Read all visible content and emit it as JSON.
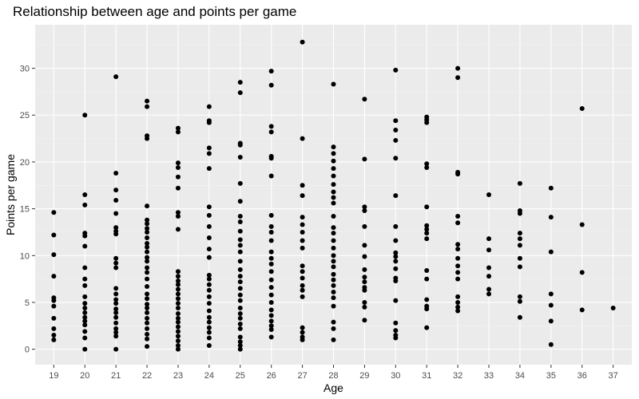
{
  "chart_data": {
    "type": "scatter",
    "title": "Relationship between age and points per game",
    "xlabel": "Age",
    "ylabel": "Points per game",
    "xlim": [
      18.4,
      37.6
    ],
    "ylim": [
      -1.65,
      34.65
    ],
    "x_ticks": [
      19,
      20,
      21,
      22,
      23,
      24,
      25,
      26,
      27,
      28,
      29,
      30,
      31,
      32,
      33,
      34,
      35,
      36,
      37
    ],
    "y_ticks": [
      0,
      5,
      10,
      15,
      20,
      25,
      30
    ],
    "grid": true,
    "legend": "none",
    "colors": {
      "panel_bg": "#EBEBEB",
      "grid_major": "#FFFFFF",
      "grid_minor": "#F2F2F2",
      "point": "#000000",
      "tick": "#333333"
    },
    "series": [
      {
        "points": [
          [
            19,
            14.6
          ],
          [
            19,
            12.2
          ],
          [
            19,
            10.1
          ],
          [
            19,
            7.8
          ],
          [
            19,
            5.5
          ],
          [
            19,
            5.2
          ],
          [
            19,
            4.6
          ],
          [
            19,
            3.3
          ],
          [
            19,
            2.2
          ],
          [
            19,
            1.5
          ],
          [
            19,
            1.0
          ],
          [
            20,
            25.0
          ],
          [
            20,
            16.5
          ],
          [
            20,
            15.4
          ],
          [
            20,
            12.4
          ],
          [
            20,
            12.1
          ],
          [
            20,
            11.0
          ],
          [
            20,
            8.7
          ],
          [
            20,
            7.5
          ],
          [
            20,
            6.8
          ],
          [
            20,
            5.6
          ],
          [
            20,
            4.9
          ],
          [
            20,
            4.4
          ],
          [
            20,
            3.9
          ],
          [
            20,
            3.4
          ],
          [
            20,
            3.0
          ],
          [
            20,
            2.6
          ],
          [
            20,
            1.9
          ],
          [
            20,
            1.2
          ],
          [
            20,
            0.0
          ],
          [
            21,
            29.1
          ],
          [
            21,
            18.8
          ],
          [
            21,
            17.0
          ],
          [
            21,
            15.9
          ],
          [
            21,
            14.5
          ],
          [
            21,
            13.0
          ],
          [
            21,
            12.6
          ],
          [
            21,
            12.3
          ],
          [
            21,
            9.7
          ],
          [
            21,
            9.2
          ],
          [
            21,
            8.7
          ],
          [
            21,
            6.5
          ],
          [
            21,
            5.9
          ],
          [
            21,
            5.3
          ],
          [
            21,
            4.9
          ],
          [
            21,
            4.3
          ],
          [
            21,
            3.9
          ],
          [
            21,
            3.4
          ],
          [
            21,
            2.8
          ],
          [
            21,
            2.2
          ],
          [
            21,
            1.8
          ],
          [
            21,
            1.4
          ],
          [
            21,
            0.0
          ],
          [
            22,
            26.5
          ],
          [
            22,
            25.9
          ],
          [
            22,
            22.8
          ],
          [
            22,
            22.5
          ],
          [
            22,
            15.3
          ],
          [
            22,
            13.8
          ],
          [
            22,
            13.4
          ],
          [
            22,
            12.9
          ],
          [
            22,
            12.5
          ],
          [
            22,
            11.9
          ],
          [
            22,
            11.3
          ],
          [
            22,
            10.9
          ],
          [
            22,
            10.4
          ],
          [
            22,
            9.8
          ],
          [
            22,
            9.4
          ],
          [
            22,
            8.7
          ],
          [
            22,
            8.2
          ],
          [
            22,
            7.5
          ],
          [
            22,
            6.7
          ],
          [
            22,
            5.9
          ],
          [
            22,
            5.4
          ],
          [
            22,
            4.8
          ],
          [
            22,
            4.4
          ],
          [
            22,
            3.9
          ],
          [
            22,
            3.3
          ],
          [
            22,
            2.8
          ],
          [
            22,
            2.2
          ],
          [
            22,
            1.6
          ],
          [
            22,
            1.1
          ],
          [
            22,
            0.3
          ],
          [
            23,
            23.6
          ],
          [
            23,
            23.2
          ],
          [
            23,
            19.9
          ],
          [
            23,
            19.4
          ],
          [
            23,
            18.4
          ],
          [
            23,
            17.2
          ],
          [
            23,
            14.6
          ],
          [
            23,
            14.2
          ],
          [
            23,
            12.8
          ],
          [
            23,
            8.3
          ],
          [
            23,
            7.8
          ],
          [
            23,
            7.3
          ],
          [
            23,
            6.9
          ],
          [
            23,
            6.4
          ],
          [
            23,
            5.9
          ],
          [
            23,
            5.4
          ],
          [
            23,
            4.9
          ],
          [
            23,
            4.4
          ],
          [
            23,
            3.8
          ],
          [
            23,
            3.3
          ],
          [
            23,
            2.9
          ],
          [
            23,
            2.4
          ],
          [
            23,
            1.9
          ],
          [
            23,
            1.4
          ],
          [
            23,
            0.9
          ],
          [
            23,
            0.4
          ],
          [
            23,
            0.0
          ],
          [
            24,
            25.9
          ],
          [
            24,
            24.4
          ],
          [
            24,
            24.2
          ],
          [
            24,
            21.5
          ],
          [
            24,
            20.9
          ],
          [
            24,
            19.3
          ],
          [
            24,
            15.2
          ],
          [
            24,
            14.3
          ],
          [
            24,
            13.1
          ],
          [
            24,
            11.9
          ],
          [
            24,
            10.7
          ],
          [
            24,
            9.8
          ],
          [
            24,
            7.9
          ],
          [
            24,
            7.5
          ],
          [
            24,
            6.9
          ],
          [
            24,
            6.3
          ],
          [
            24,
            5.6
          ],
          [
            24,
            4.9
          ],
          [
            24,
            4.1
          ],
          [
            24,
            3.4
          ],
          [
            24,
            2.9
          ],
          [
            24,
            2.3
          ],
          [
            24,
            1.8
          ],
          [
            24,
            1.2
          ],
          [
            24,
            0.4
          ],
          [
            25,
            28.5
          ],
          [
            25,
            27.4
          ],
          [
            25,
            22.0
          ],
          [
            25,
            21.8
          ],
          [
            25,
            20.5
          ],
          [
            25,
            17.7
          ],
          [
            25,
            15.8
          ],
          [
            25,
            14.2
          ],
          [
            25,
            13.6
          ],
          [
            25,
            12.6
          ],
          [
            25,
            11.7
          ],
          [
            25,
            11.1
          ],
          [
            25,
            10.4
          ],
          [
            25,
            9.4
          ],
          [
            25,
            8.5
          ],
          [
            25,
            7.8
          ],
          [
            25,
            7.2
          ],
          [
            25,
            6.5
          ],
          [
            25,
            5.8
          ],
          [
            25,
            5.2
          ],
          [
            25,
            4.4
          ],
          [
            25,
            3.8
          ],
          [
            25,
            3.3
          ],
          [
            25,
            2.7
          ],
          [
            25,
            2.2
          ],
          [
            25,
            1.3
          ],
          [
            25,
            0.8
          ],
          [
            25,
            0.4
          ],
          [
            25,
            0.0
          ],
          [
            26,
            29.7
          ],
          [
            26,
            28.2
          ],
          [
            26,
            23.8
          ],
          [
            26,
            23.2
          ],
          [
            26,
            20.6
          ],
          [
            26,
            20.4
          ],
          [
            26,
            18.5
          ],
          [
            26,
            14.3
          ],
          [
            26,
            13.1
          ],
          [
            26,
            12.5
          ],
          [
            26,
            11.6
          ],
          [
            26,
            10.4
          ],
          [
            26,
            9.7
          ],
          [
            26,
            9.1
          ],
          [
            26,
            8.3
          ],
          [
            26,
            7.4
          ],
          [
            26,
            6.6
          ],
          [
            26,
            5.8
          ],
          [
            26,
            5.0
          ],
          [
            26,
            4.2
          ],
          [
            26,
            3.6
          ],
          [
            26,
            3.0
          ],
          [
            26,
            2.5
          ],
          [
            26,
            2.1
          ],
          [
            26,
            1.3
          ],
          [
            27,
            32.8
          ],
          [
            27,
            22.5
          ],
          [
            27,
            17.5
          ],
          [
            27,
            16.4
          ],
          [
            27,
            14.1
          ],
          [
            27,
            13.3
          ],
          [
            27,
            12.5
          ],
          [
            27,
            11.6
          ],
          [
            27,
            10.8
          ],
          [
            27,
            8.9
          ],
          [
            27,
            8.3
          ],
          [
            27,
            7.6
          ],
          [
            27,
            6.8
          ],
          [
            27,
            6.3
          ],
          [
            27,
            5.6
          ],
          [
            27,
            2.3
          ],
          [
            27,
            1.8
          ],
          [
            27,
            1.3
          ],
          [
            27,
            1.0
          ],
          [
            28,
            28.3
          ],
          [
            28,
            21.6
          ],
          [
            28,
            20.9
          ],
          [
            28,
            20.1
          ],
          [
            28,
            19.3
          ],
          [
            28,
            18.5
          ],
          [
            28,
            17.6
          ],
          [
            28,
            16.8
          ],
          [
            28,
            16.2
          ],
          [
            28,
            15.6
          ],
          [
            28,
            14.2
          ],
          [
            28,
            13.0
          ],
          [
            28,
            12.4
          ],
          [
            28,
            11.6
          ],
          [
            28,
            10.8
          ],
          [
            28,
            10.0
          ],
          [
            28,
            9.4
          ],
          [
            28,
            8.8
          ],
          [
            28,
            8.0
          ],
          [
            28,
            7.4
          ],
          [
            28,
            6.8
          ],
          [
            28,
            6.1
          ],
          [
            28,
            5.5
          ],
          [
            28,
            4.6
          ],
          [
            28,
            2.9
          ],
          [
            28,
            2.2
          ],
          [
            28,
            1.0
          ],
          [
            29,
            26.7
          ],
          [
            29,
            20.3
          ],
          [
            29,
            15.2
          ],
          [
            29,
            14.8
          ],
          [
            29,
            13.1
          ],
          [
            29,
            11.1
          ],
          [
            29,
            9.9
          ],
          [
            29,
            8.5
          ],
          [
            29,
            7.7
          ],
          [
            29,
            7.2
          ],
          [
            29,
            6.6
          ],
          [
            29,
            6.3
          ],
          [
            29,
            5.0
          ],
          [
            29,
            4.5
          ],
          [
            29,
            3.1
          ],
          [
            30,
            29.8
          ],
          [
            30,
            24.4
          ],
          [
            30,
            23.4
          ],
          [
            30,
            22.3
          ],
          [
            30,
            20.4
          ],
          [
            30,
            16.4
          ],
          [
            30,
            13.1
          ],
          [
            30,
            11.6
          ],
          [
            30,
            10.3
          ],
          [
            30,
            9.9
          ],
          [
            30,
            9.4
          ],
          [
            30,
            8.6
          ],
          [
            30,
            7.6
          ],
          [
            30,
            7.3
          ],
          [
            30,
            5.2
          ],
          [
            30,
            2.8
          ],
          [
            30,
            2.0
          ],
          [
            30,
            1.5
          ],
          [
            30,
            1.2
          ],
          [
            31,
            24.8
          ],
          [
            31,
            24.5
          ],
          [
            31,
            24.2
          ],
          [
            31,
            19.8
          ],
          [
            31,
            19.4
          ],
          [
            31,
            15.2
          ],
          [
            31,
            13.2
          ],
          [
            31,
            12.8
          ],
          [
            31,
            12.4
          ],
          [
            31,
            11.8
          ],
          [
            31,
            8.4
          ],
          [
            31,
            7.5
          ],
          [
            31,
            5.3
          ],
          [
            31,
            4.6
          ],
          [
            31,
            4.3
          ],
          [
            31,
            2.3
          ],
          [
            32,
            30.0
          ],
          [
            32,
            29.0
          ],
          [
            32,
            18.9
          ],
          [
            32,
            18.7
          ],
          [
            32,
            14.2
          ],
          [
            32,
            13.5
          ],
          [
            32,
            11.2
          ],
          [
            32,
            10.7
          ],
          [
            32,
            9.7
          ],
          [
            32,
            8.9
          ],
          [
            32,
            8.2
          ],
          [
            32,
            7.5
          ],
          [
            32,
            5.6
          ],
          [
            32,
            5.0
          ],
          [
            32,
            4.5
          ],
          [
            32,
            4.1
          ],
          [
            33,
            16.5
          ],
          [
            33,
            11.8
          ],
          [
            33,
            10.6
          ],
          [
            33,
            8.7
          ],
          [
            33,
            7.8
          ],
          [
            33,
            6.4
          ],
          [
            33,
            5.9
          ],
          [
            34,
            17.7
          ],
          [
            34,
            14.8
          ],
          [
            34,
            14.5
          ],
          [
            34,
            12.4
          ],
          [
            34,
            11.8
          ],
          [
            34,
            11.1
          ],
          [
            34,
            9.7
          ],
          [
            34,
            8.8
          ],
          [
            34,
            5.6
          ],
          [
            34,
            5.1
          ],
          [
            34,
            3.4
          ],
          [
            35,
            17.2
          ],
          [
            35,
            14.1
          ],
          [
            35,
            10.4
          ],
          [
            35,
            5.9
          ],
          [
            35,
            4.7
          ],
          [
            35,
            3.0
          ],
          [
            35,
            0.5
          ],
          [
            36,
            25.7
          ],
          [
            36,
            13.3
          ],
          [
            36,
            8.2
          ],
          [
            36,
            4.2
          ],
          [
            37,
            4.4
          ]
        ]
      }
    ]
  }
}
